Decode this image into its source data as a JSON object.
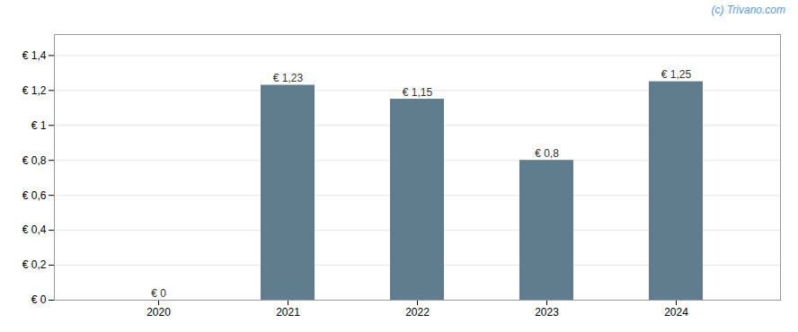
{
  "chart_data": {
    "type": "bar",
    "categories": [
      "2020",
      "2021",
      "2022",
      "2023",
      "2024"
    ],
    "values": [
      0,
      1.23,
      1.15,
      0.8,
      1.25
    ],
    "value_labels": [
      "€ 0",
      "€ 1,23",
      "€ 1,15",
      "€ 0,8",
      "€ 1,25"
    ],
    "data_labels": true,
    "color": "#5f7d8c",
    "ylim": [
      0,
      1.52
    ],
    "yticks": [
      {
        "value": 0,
        "label": "€ 0"
      },
      {
        "value": 0.2,
        "label": "€ 0,2"
      },
      {
        "value": 0.4,
        "label": "€ 0,4"
      },
      {
        "value": 0.6,
        "label": "€ 0,6"
      },
      {
        "value": 0.8,
        "label": "€ 0,8"
      },
      {
        "value": 1.0,
        "label": "€ 1"
      },
      {
        "value": 1.2,
        "label": "€ 1,2"
      },
      {
        "value": 1.4,
        "label": "€ 1,4"
      }
    ],
    "grid": true,
    "annotations": [
      "(c) Trivano.com"
    ]
  }
}
